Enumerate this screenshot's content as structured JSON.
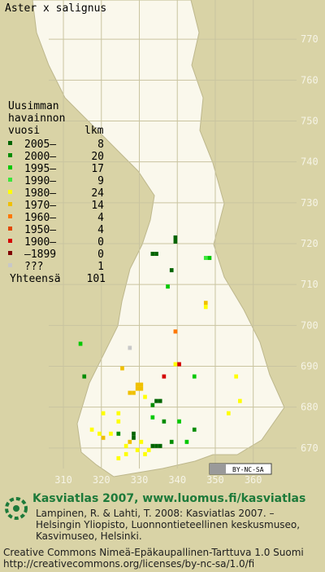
{
  "title": "Aster x salignus",
  "legend": {
    "header": [
      "Uusimman",
      "havainnon",
      "vuosi"
    ],
    "count_header": "lkm",
    "rows": [
      {
        "label": "2005–",
        "count": 8,
        "color": "#006400"
      },
      {
        "label": "2000–",
        "count": 20,
        "color": "#008c00"
      },
      {
        "label": "1995–",
        "count": 17,
        "color": "#00c800"
      },
      {
        "label": "1990–",
        "count": 9,
        "color": "#3ce63c"
      },
      {
        "label": "1980–",
        "count": 24,
        "color": "#ffff00"
      },
      {
        "label": "1970–",
        "count": 14,
        "color": "#f0c000"
      },
      {
        "label": "1960–",
        "count": 4,
        "color": "#ff7800"
      },
      {
        "label": "1950–",
        "count": 4,
        "color": "#e04800"
      },
      {
        "label": "1900–",
        "count": 0,
        "color": "#d40000"
      },
      {
        "label": "–1899",
        "count": 0,
        "color": "#800000"
      },
      {
        "label": "???",
        "count": 1,
        "color": "#c8c8c8"
      }
    ],
    "total_label": "Yhteensä",
    "total": 101
  },
  "map": {
    "xlim": [
      293.3,
      378.9
    ],
    "ylim": [
      660,
      779.6
    ],
    "xticks": [
      310,
      320,
      330,
      340,
      350,
      360
    ],
    "yticks": [
      670,
      680,
      690,
      700,
      710,
      720,
      730,
      740,
      750,
      760,
      770
    ],
    "squares": [
      {
        "x": 339,
        "y": 721,
        "period": 0
      },
      {
        "x": 339,
        "y": 720,
        "period": 0
      },
      {
        "x": 333,
        "y": 717,
        "period": 0
      },
      {
        "x": 334,
        "y": 717,
        "period": 0
      },
      {
        "x": 347,
        "y": 716,
        "period": 3
      },
      {
        "x": 348,
        "y": 716,
        "period": 2
      },
      {
        "x": 338,
        "y": 713,
        "period": 0
      },
      {
        "x": 337,
        "y": 709,
        "period": 2
      },
      {
        "x": 347,
        "y": 705,
        "period": 5
      },
      {
        "x": 347,
        "y": 704,
        "period": 4
      },
      {
        "x": 339,
        "y": 698,
        "period": 6
      },
      {
        "x": 314,
        "y": 695,
        "period": 2
      },
      {
        "x": 327,
        "y": 694,
        "period": 10
      },
      {
        "x": 339,
        "y": 690,
        "period": 4
      },
      {
        "x": 340,
        "y": 690,
        "period": 8
      },
      {
        "x": 325,
        "y": 689,
        "period": 5
      },
      {
        "x": 336,
        "y": 687,
        "period": 8
      },
      {
        "x": 315,
        "y": 687,
        "period": 1
      },
      {
        "x": 344,
        "y": 687,
        "period": 2
      },
      {
        "x": 355,
        "y": 687,
        "period": 4
      },
      {
        "x": 329,
        "y": 685,
        "period": 5
      },
      {
        "x": 330,
        "y": 685,
        "period": 5
      },
      {
        "x": 329,
        "y": 684,
        "period": 5
      },
      {
        "x": 330,
        "y": 684,
        "period": 5
      },
      {
        "x": 328,
        "y": 683,
        "period": 5
      },
      {
        "x": 327,
        "y": 683,
        "period": 5
      },
      {
        "x": 331,
        "y": 682,
        "period": 4
      },
      {
        "x": 356,
        "y": 681,
        "period": 4
      },
      {
        "x": 334,
        "y": 681,
        "period": 0
      },
      {
        "x": 335,
        "y": 681,
        "period": 0
      },
      {
        "x": 333,
        "y": 680,
        "period": 1
      },
      {
        "x": 353,
        "y": 678,
        "period": 4
      },
      {
        "x": 320,
        "y": 678,
        "period": 4
      },
      {
        "x": 324,
        "y": 678,
        "period": 4
      },
      {
        "x": 333,
        "y": 677,
        "period": 2
      },
      {
        "x": 336,
        "y": 676,
        "period": 1
      },
      {
        "x": 324,
        "y": 676,
        "period": 4
      },
      {
        "x": 340,
        "y": 676,
        "period": 2
      },
      {
        "x": 344,
        "y": 674,
        "period": 1
      },
      {
        "x": 317,
        "y": 674,
        "period": 4
      },
      {
        "x": 319,
        "y": 673,
        "period": 4
      },
      {
        "x": 322,
        "y": 673,
        "period": 4
      },
      {
        "x": 324,
        "y": 673,
        "period": 1
      },
      {
        "x": 328,
        "y": 673,
        "period": 0
      },
      {
        "x": 328,
        "y": 672,
        "period": 0
      },
      {
        "x": 327,
        "y": 671,
        "period": 5
      },
      {
        "x": 330,
        "y": 671,
        "period": 4
      },
      {
        "x": 326,
        "y": 670,
        "period": 4
      },
      {
        "x": 329,
        "y": 669,
        "period": 4
      },
      {
        "x": 333,
        "y": 670,
        "period": 0
      },
      {
        "x": 334,
        "y": 670,
        "period": 0
      },
      {
        "x": 335,
        "y": 670,
        "period": 0
      },
      {
        "x": 338,
        "y": 671,
        "period": 1
      },
      {
        "x": 342,
        "y": 671,
        "period": 2
      },
      {
        "x": 320,
        "y": 672,
        "period": 5
      },
      {
        "x": 324,
        "y": 667,
        "period": 4
      },
      {
        "x": 326,
        "y": 668,
        "period": 4
      },
      {
        "x": 331,
        "y": 668,
        "period": 4
      },
      {
        "x": 332,
        "y": 669,
        "period": 4
      }
    ]
  },
  "badge": "BY-NC-SA",
  "footer": {
    "heading": "Kasviatlas 2007, www.luomus.fi/kasviatlas",
    "citation": [
      "Lampinen, R. & Lahti, T. 2008: Kasviatlas 2007. –",
      "Helsingin Yliopisto, Luonnontieteellinen keskusmuseo,",
      "Kasvimuseo, Helsinki."
    ],
    "license": [
      "Creative Commons Nimeä-Epäkaupallinen-Tarttuva 1.0 Suomi",
      "http://creativecommons.org/licenses/by-nc-sa/1.0/fi"
    ]
  }
}
